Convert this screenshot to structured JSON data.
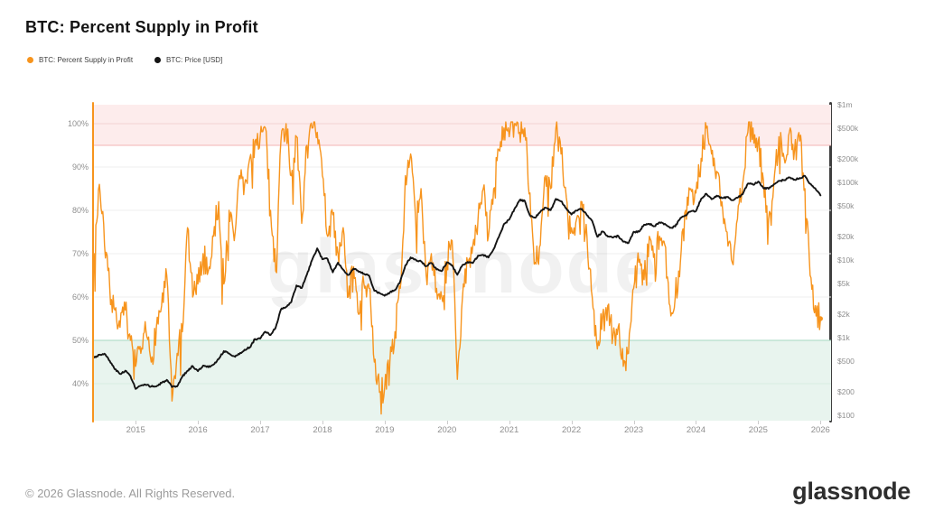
{
  "title": "BTC: Percent Supply in Profit",
  "legend": {
    "items": [
      {
        "label": "BTC: Percent Supply in Profit",
        "color": "#f7941d"
      },
      {
        "label": "BTC: Price [USD]",
        "color": "#111111"
      }
    ]
  },
  "footer": {
    "copyright": "© 2026 Glassnode. All Rights Reserved.",
    "brand": "glassnode"
  },
  "chart_data": {
    "type": "line",
    "title": "BTC: Percent Supply in Profit",
    "watermark": "glassnode",
    "grid": true,
    "x_range": [
      2014.33,
      2026.17
    ],
    "x_ticks": [
      {
        "label": "2015",
        "v": 2015
      },
      {
        "label": "2016",
        "v": 2016
      },
      {
        "label": "2017",
        "v": 2017
      },
      {
        "label": "2018",
        "v": 2018
      },
      {
        "label": "2019",
        "v": 2019
      },
      {
        "label": "2020",
        "v": 2020
      },
      {
        "label": "2021",
        "v": 2021
      },
      {
        "label": "2022",
        "v": 2022
      },
      {
        "label": "2023",
        "v": 2023
      },
      {
        "label": "2024",
        "v": 2024
      },
      {
        "label": "2025",
        "v": 2025
      },
      {
        "label": "2026",
        "v": 2026
      }
    ],
    "left_axis": {
      "unit": "%",
      "range": [
        31.458,
        104.375
      ],
      "ticks": [
        {
          "label": "100%",
          "v": 100
        },
        {
          "label": "90%",
          "v": 90
        },
        {
          "label": "80%",
          "v": 80
        },
        {
          "label": "70%",
          "v": 70
        },
        {
          "label": "60%",
          "v": 60
        },
        {
          "label": "50%",
          "v": 50
        },
        {
          "label": "40%",
          "v": 40
        }
      ]
    },
    "right_axis": {
      "unit": "USD",
      "scale": "log",
      "range": [
        85,
        1000000
      ],
      "ticks": [
        {
          "label": "$1m",
          "v": 1000000
        },
        {
          "label": "$500k",
          "v": 500000
        },
        {
          "label": "$200k",
          "v": 200000
        },
        {
          "label": "$100k",
          "v": 100000
        },
        {
          "label": "$50k",
          "v": 50000
        },
        {
          "label": "$20k",
          "v": 20000
        },
        {
          "label": "$10k",
          "v": 10000
        },
        {
          "label": "$5k",
          "v": 5000
        },
        {
          "label": "$2k",
          "v": 2000
        },
        {
          "label": "$1k",
          "v": 1000
        },
        {
          "label": "$500",
          "v": 500
        },
        {
          "label": "$200",
          "v": 200
        },
        {
          "label": "$100",
          "v": 100
        }
      ]
    },
    "bands": [
      {
        "name": "profit-top-band",
        "from": 95,
        "to": 104.375,
        "fill": "#fdecec",
        "edge_value": 95,
        "edge_color": "#f3b4b4"
      },
      {
        "name": "profit-bottom-band",
        "from": 31.458,
        "to": 50,
        "fill": "#e8f4ee",
        "edge_value": 50,
        "edge_color": "#a6d7c0"
      }
    ],
    "gridlines": [
      {
        "v": 100,
        "color": "#f2d2d2"
      },
      {
        "v": 90,
        "color": "#efefef"
      },
      {
        "v": 80,
        "color": "#efefef"
      },
      {
        "v": 70,
        "color": "#efefef"
      },
      {
        "v": 60,
        "color": "#efefef"
      },
      {
        "v": 40,
        "color": "#d8ebe1"
      }
    ],
    "series": [
      {
        "name": "BTC: Percent Supply in Profit",
        "color": "#f7941d",
        "axis": "left",
        "x_start": 2014.3333,
        "x_step": 0.0833333,
        "jitter": 3.2,
        "seed": 7,
        "end_marker": true,
        "values": [
          70,
          86,
          72,
          62,
          57,
          53,
          57,
          50,
          44,
          47,
          52,
          45,
          53,
          58,
          65,
          36,
          47,
          52,
          76,
          60,
          63,
          70,
          66,
          74,
          82,
          63,
          80,
          73,
          88,
          86,
          92,
          96,
          97,
          99,
          80,
          66,
          96,
          100,
          88,
          97,
          77,
          95,
          99,
          98,
          88,
          74,
          79,
          70,
          76,
          60,
          67,
          56,
          63,
          62,
          45,
          38,
          39,
          45,
          52,
          62,
          88,
          93,
          77,
          85,
          65,
          70,
          62,
          60,
          68,
          73,
          41,
          60,
          68,
          72,
          78,
          85,
          74,
          85,
          94,
          99,
          97,
          100,
          98,
          99,
          84,
          68,
          72,
          88,
          85,
          99,
          93,
          83,
          76,
          78,
          82,
          74,
          60,
          48,
          56,
          58,
          51,
          53,
          44,
          47,
          62,
          68,
          64,
          74,
          70,
          74,
          72,
          58,
          60,
          68,
          80,
          85,
          84,
          92,
          99,
          93,
          89,
          82,
          75,
          68,
          78,
          86,
          98,
          99,
          96,
          87,
          78,
          86,
          97,
          92,
          98,
          94,
          96,
          85,
          65,
          58,
          55
        ]
      },
      {
        "name": "BTC: Price [USD]",
        "color": "#141414",
        "axis": "right",
        "x_start": 2014.3333,
        "x_step": 0.0833333,
        "jitter": 0.011,
        "seed": 3,
        "end_marker": false,
        "values": [
          555,
          600,
          620,
          500,
          390,
          340,
          375,
          320,
          218,
          240,
          245,
          235,
          235,
          260,
          285,
          230,
          235,
          315,
          375,
          430,
          370,
          435,
          415,
          450,
          530,
          670,
          625,
          575,
          610,
          700,
          745,
          960,
          970,
          1190,
          1080,
          1350,
          2300,
          2480,
          2875,
          4700,
          4340,
          6450,
          9950,
          14100,
          10200,
          10300,
          6930,
          9240,
          7500,
          6400,
          7750,
          7030,
          6625,
          6300,
          4020,
          3740,
          3460,
          3815,
          4100,
          5320,
          8560,
          10800,
          10080,
          9600,
          8300,
          9150,
          7550,
          7190,
          9350,
          8550,
          6440,
          8620,
          9450,
          9140,
          11350,
          11650,
          10780,
          13800,
          19700,
          29000,
          33100,
          45100,
          58800,
          57700,
          37300,
          35000,
          41500,
          47100,
          43800,
          61300,
          57000,
          46200,
          38500,
          43200,
          45500,
          37600,
          31800,
          19900,
          23300,
          20050,
          19400,
          20500,
          17150,
          16550,
          23100,
          23150,
          28500,
          29250,
          27200,
          30480,
          29230,
          25930,
          26960,
          34650,
          37700,
          42250,
          42580,
          61200,
          71300,
          60640,
          67500,
          62680,
          64620,
          58970,
          63330,
          70200,
          96400,
          93400,
          102400,
          84400,
          82500,
          94200,
          104600,
          107100,
          115800,
          108200,
          114000,
          121000,
          96000,
          84000,
          68000
        ]
      }
    ]
  }
}
